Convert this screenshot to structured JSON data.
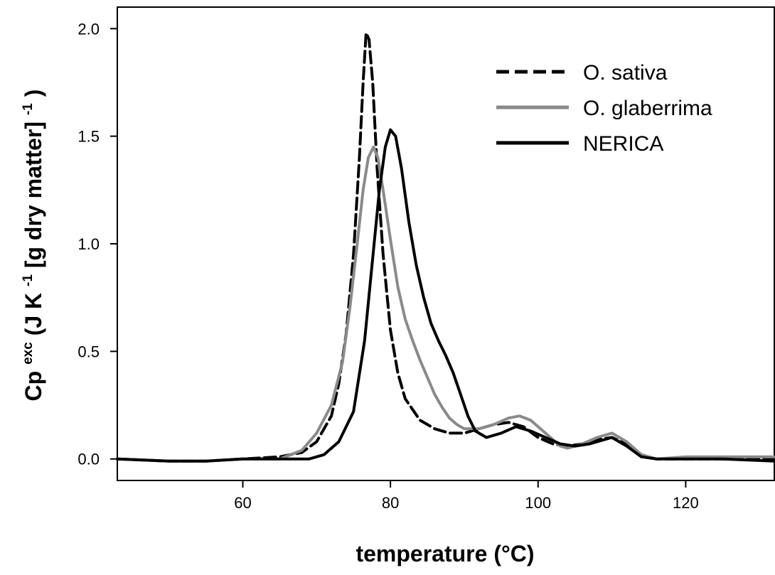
{
  "chart_data": {
    "type": "line",
    "title": "",
    "xlabel": "temperature (°C)",
    "ylabel": {
      "base": "Cp",
      "sup1": "exc",
      "mid1": " (J K",
      "sup2": "-1",
      "mid2": " [g dry matter]",
      "sup3": "-1",
      "end": ")"
    },
    "xlim": [
      43,
      132
    ],
    "ylim": [
      -0.1,
      2.1
    ],
    "x_ticks": [
      60,
      80,
      100,
      120
    ],
    "y_ticks": [
      0.0,
      0.5,
      1.0,
      1.5,
      2.0
    ],
    "x_tick_labels": [
      "60",
      "80",
      "100",
      "120"
    ],
    "y_tick_labels": [
      "0.0",
      "0.5",
      "1.0",
      "1.5",
      "2.0"
    ],
    "grid": false,
    "legend_position": "top-right",
    "series": [
      {
        "name": "O. sativa",
        "color": "#000000",
        "style": "dashed",
        "points": [
          [
            43,
            0.0
          ],
          [
            50,
            -0.01
          ],
          [
            55,
            -0.01
          ],
          [
            60,
            0.0
          ],
          [
            65,
            0.01
          ],
          [
            68,
            0.03
          ],
          [
            70,
            0.08
          ],
          [
            72,
            0.2
          ],
          [
            73,
            0.35
          ],
          [
            74,
            0.58
          ],
          [
            75,
            0.95
          ],
          [
            75.8,
            1.4
          ],
          [
            76.3,
            1.75
          ],
          [
            76.7,
            1.98
          ],
          [
            77.1,
            1.95
          ],
          [
            77.6,
            1.75
          ],
          [
            78.2,
            1.35
          ],
          [
            79,
            0.95
          ],
          [
            80,
            0.6
          ],
          [
            81,
            0.4
          ],
          [
            82,
            0.28
          ],
          [
            84,
            0.18
          ],
          [
            86,
            0.14
          ],
          [
            88,
            0.12
          ],
          [
            90,
            0.12
          ],
          [
            92,
            0.14
          ],
          [
            94,
            0.16
          ],
          [
            96,
            0.17
          ],
          [
            98,
            0.15
          ],
          [
            100,
            0.1
          ],
          [
            102,
            0.07
          ],
          [
            104,
            0.06
          ],
          [
            106,
            0.07
          ],
          [
            108,
            0.09
          ],
          [
            110,
            0.1
          ],
          [
            112,
            0.07
          ],
          [
            114,
            0.02
          ],
          [
            116,
            0.0
          ],
          [
            120,
            0.0
          ],
          [
            125,
            0.0
          ],
          [
            132,
            0.0
          ]
        ]
      },
      {
        "name": "O. glaberrima",
        "color": "#8a8a8a",
        "style": "solid",
        "points": [
          [
            43,
            0.0
          ],
          [
            50,
            -0.01
          ],
          [
            55,
            -0.01
          ],
          [
            60,
            0.0
          ],
          [
            65,
            0.0
          ],
          [
            68,
            0.04
          ],
          [
            70,
            0.12
          ],
          [
            72,
            0.25
          ],
          [
            73.5,
            0.45
          ],
          [
            74.5,
            0.7
          ],
          [
            75.5,
            1.0
          ],
          [
            76.3,
            1.25
          ],
          [
            77,
            1.4
          ],
          [
            77.7,
            1.45
          ],
          [
            78.3,
            1.4
          ],
          [
            79,
            1.25
          ],
          [
            80,
            1.02
          ],
          [
            81,
            0.8
          ],
          [
            82,
            0.65
          ],
          [
            83,
            0.55
          ],
          [
            84,
            0.46
          ],
          [
            85,
            0.38
          ],
          [
            86,
            0.3
          ],
          [
            87,
            0.24
          ],
          [
            88,
            0.19
          ],
          [
            89,
            0.16
          ],
          [
            90,
            0.14
          ],
          [
            92,
            0.14
          ],
          [
            94,
            0.16
          ],
          [
            96,
            0.19
          ],
          [
            97.5,
            0.2
          ],
          [
            99,
            0.18
          ],
          [
            101,
            0.12
          ],
          [
            103,
            0.06
          ],
          [
            104,
            0.05
          ],
          [
            106,
            0.07
          ],
          [
            108,
            0.1
          ],
          [
            110,
            0.12
          ],
          [
            112,
            0.08
          ],
          [
            114,
            0.02
          ],
          [
            116,
            0.0
          ],
          [
            120,
            0.01
          ],
          [
            125,
            0.01
          ],
          [
            132,
            0.01
          ]
        ]
      },
      {
        "name": "NERICA",
        "color": "#000000",
        "style": "solid",
        "points": [
          [
            43,
            0.0
          ],
          [
            50,
            -0.01
          ],
          [
            55,
            -0.01
          ],
          [
            60,
            0.0
          ],
          [
            65,
            0.0
          ],
          [
            69,
            0.0
          ],
          [
            71,
            0.02
          ],
          [
            73,
            0.08
          ],
          [
            75,
            0.22
          ],
          [
            76.5,
            0.55
          ],
          [
            77.5,
            0.9
          ],
          [
            78.5,
            1.25
          ],
          [
            79.3,
            1.45
          ],
          [
            80,
            1.53
          ],
          [
            80.7,
            1.5
          ],
          [
            81.5,
            1.35
          ],
          [
            82.5,
            1.1
          ],
          [
            83.5,
            0.9
          ],
          [
            84.5,
            0.75
          ],
          [
            85.5,
            0.63
          ],
          [
            86.5,
            0.55
          ],
          [
            87.5,
            0.48
          ],
          [
            88.5,
            0.4
          ],
          [
            89.5,
            0.3
          ],
          [
            90.5,
            0.2
          ],
          [
            91.5,
            0.13
          ],
          [
            93,
            0.1
          ],
          [
            95,
            0.12
          ],
          [
            97,
            0.15
          ],
          [
            99,
            0.13
          ],
          [
            101,
            0.1
          ],
          [
            103,
            0.07
          ],
          [
            105,
            0.06
          ],
          [
            107,
            0.07
          ],
          [
            109,
            0.09
          ],
          [
            110,
            0.1
          ],
          [
            112,
            0.06
          ],
          [
            114,
            0.01
          ],
          [
            116,
            0.0
          ],
          [
            120,
            0.0
          ],
          [
            125,
            0.0
          ],
          [
            132,
            -0.01
          ]
        ]
      }
    ]
  }
}
